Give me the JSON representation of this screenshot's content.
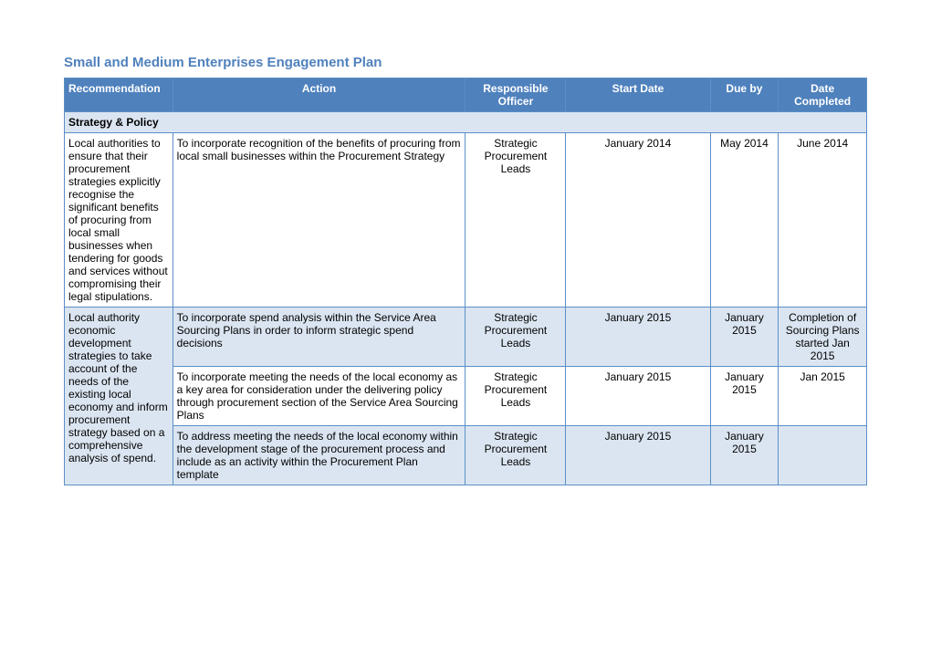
{
  "title": "Small and Medium Enterprises Engagement Plan",
  "columns": [
    "Recommendation",
    "Action",
    "Responsible Officer",
    "Start Date",
    "Due by",
    "Date Completed"
  ],
  "section": "Strategy & Policy",
  "rows": [
    {
      "rec": "Local authorities to ensure that their procurement strategies explicitly recognise the significant benefits of procuring from local small businesses when tendering for goods and services without compromising their legal stipulations.",
      "action": "To incorporate recognition of the benefits of procuring from local small businesses within the Procurement Strategy",
      "officer": "Strategic Procurement Leads",
      "start": "January 2014",
      "due": "May 2014",
      "completed": "June 2014",
      "alt": false,
      "rowspan": 1
    },
    {
      "rec": "Local authority economic development strategies to take account of the needs of the existing local economy and inform procurement strategy based on a comprehensive analysis of spend.",
      "action": "To incorporate spend analysis within the Service Area Sourcing Plans in order to inform strategic spend decisions",
      "officer": "Strategic Procurement Leads",
      "start": "January 2015",
      "due": "January 2015",
      "completed": "Completion of Sourcing Plans started Jan 2015",
      "alt": true
    },
    {
      "action": "To incorporate meeting the needs of the local economy as a key area for consideration under the delivering policy through procurement section of the Service Area Sourcing Plans",
      "officer": "Strategic Procurement Leads",
      "start": "January 2015",
      "due": "January 2015",
      "completed": "Jan 2015",
      "alt": false
    },
    {
      "action": "To address meeting the needs of the local economy within the development stage of the procurement process and include as an activity within the Procurement Plan template",
      "officer": "Strategic Procurement Leads",
      "start": "January 2015",
      "due": "January 2015",
      "completed": "",
      "alt": true
    }
  ]
}
